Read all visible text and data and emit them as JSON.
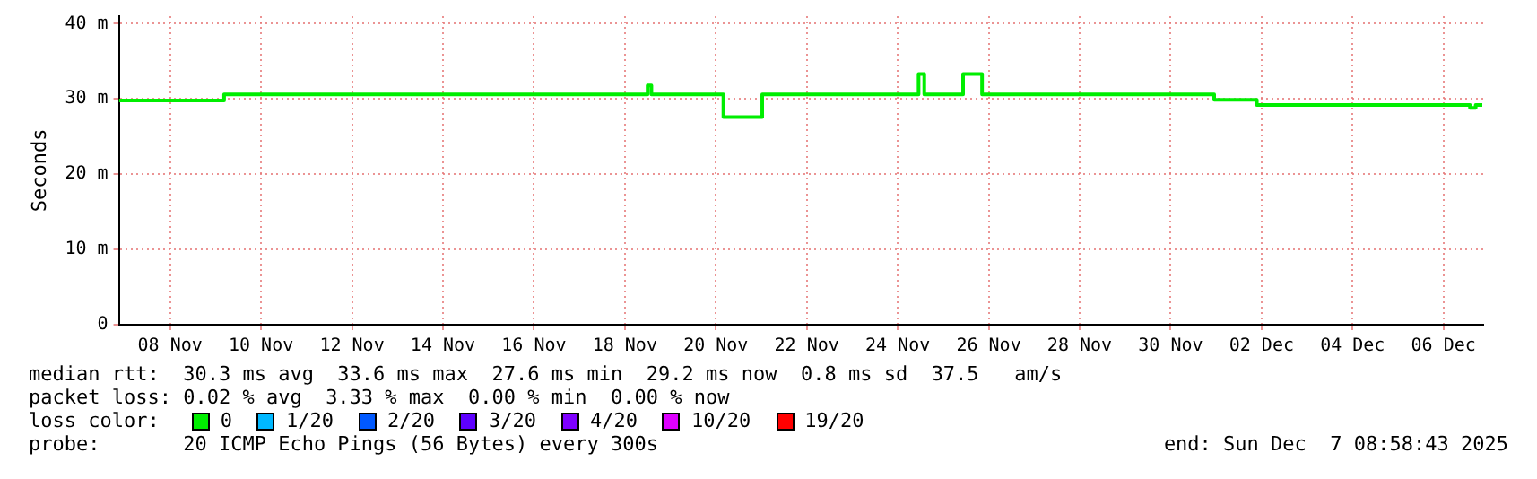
{
  "chart_data": {
    "type": "step",
    "ylabel": "Seconds",
    "x": [
      "2025-11-07T09:00",
      "2025-11-09T16:30",
      "2025-11-19T00:00",
      "2025-11-19T02:00",
      "2025-11-20T16:00",
      "2025-11-21T12:30",
      "2025-11-24T23:00",
      "2025-11-25T02:00",
      "2025-11-25T22:30",
      "2025-11-26T08:30",
      "2025-12-01T11:00",
      "2025-12-02T09:30",
      "2025-12-07T02:00",
      "2025-12-07T05:00",
      "2025-12-07T08:30"
    ],
    "series": [
      {
        "name": "0",
        "color": "#00ee00",
        "values": [
          29.8,
          30.6,
          31.8,
          30.6,
          27.6,
          30.6,
          33.3,
          30.6,
          33.3,
          30.6,
          29.9,
          29.2,
          28.8,
          29.2,
          29.2
        ]
      },
      {
        "name": "1/20",
        "color": "#00b8ff",
        "values": [
          null,
          null,
          null,
          null,
          null,
          null,
          null,
          null,
          null,
          null,
          null,
          null,
          null,
          null,
          null
        ]
      },
      {
        "name": "2/20",
        "color": "#0059ff",
        "values": [
          null,
          null,
          null,
          null,
          null,
          null,
          null,
          null,
          null,
          null,
          null,
          null,
          null,
          null,
          null
        ]
      },
      {
        "name": "3/20",
        "color": "#5e00ff",
        "values": [
          null,
          null,
          null,
          null,
          null,
          null,
          null,
          null,
          null,
          null,
          null,
          null,
          null,
          null,
          null
        ]
      },
      {
        "name": "4/20",
        "color": "#7e00ff",
        "values": [
          null,
          null,
          null,
          null,
          null,
          null,
          null,
          null,
          null,
          null,
          null,
          null,
          null,
          null,
          null
        ]
      },
      {
        "name": "10/20",
        "color": "#dd00ff",
        "values": [
          null,
          null,
          null,
          null,
          null,
          null,
          null,
          null,
          null,
          null,
          null,
          null,
          null,
          null,
          null
        ]
      },
      {
        "name": "19/20",
        "color": "#ff0000",
        "values": [
          null,
          null,
          null,
          null,
          null,
          null,
          null,
          null,
          null,
          null,
          null,
          null,
          null,
          null,
          null
        ]
      }
    ],
    "xlim": [
      "2025-11-07T08:58",
      "2025-12-07T08:58"
    ],
    "xticks": [
      {
        "value": "2025-11-08T12:00",
        "label": "08 Nov"
      },
      {
        "value": "2025-11-10T12:00",
        "label": "10 Nov"
      },
      {
        "value": "2025-11-12T12:00",
        "label": "12 Nov"
      },
      {
        "value": "2025-11-14T12:00",
        "label": "14 Nov"
      },
      {
        "value": "2025-11-16T12:00",
        "label": "16 Nov"
      },
      {
        "value": "2025-11-18T12:00",
        "label": "18 Nov"
      },
      {
        "value": "2025-11-20T12:00",
        "label": "20 Nov"
      },
      {
        "value": "2025-11-22T12:00",
        "label": "22 Nov"
      },
      {
        "value": "2025-11-24T12:00",
        "label": "24 Nov"
      },
      {
        "value": "2025-11-26T12:00",
        "label": "26 Nov"
      },
      {
        "value": "2025-11-28T12:00",
        "label": "28 Nov"
      },
      {
        "value": "2025-11-30T12:00",
        "label": "30 Nov"
      },
      {
        "value": "2025-12-02T12:00",
        "label": "02 Dec"
      },
      {
        "value": "2025-12-04T12:00",
        "label": "04 Dec"
      },
      {
        "value": "2025-12-06T12:00",
        "label": "06 Dec"
      }
    ],
    "ylim": [
      0,
      41
    ],
    "yticks": [
      {
        "value": 0,
        "label": "0"
      },
      {
        "value": 10,
        "label": "10 m"
      },
      {
        "value": 20,
        "label": "20 m"
      },
      {
        "value": 30,
        "label": "30 m"
      },
      {
        "value": 40,
        "label": "40 m"
      }
    ],
    "grid": true,
    "legend": "bottom",
    "legend_title": "loss color:",
    "line_style": "solid",
    "marker": "none",
    "annotations": [
      "median rtt:  30.3 ms avg  33.6 ms max  27.6 ms min  29.2 ms now  0.8 ms sd  37.5   am/s",
      "packet loss: 0.02 % avg  3.33 % max  0.00 % min  0.00 % now",
      "probe:       20 ICMP Echo Pings (56 Bytes) every 300s",
      "end: Sun Dec  7 08:58:43 2025"
    ]
  }
}
